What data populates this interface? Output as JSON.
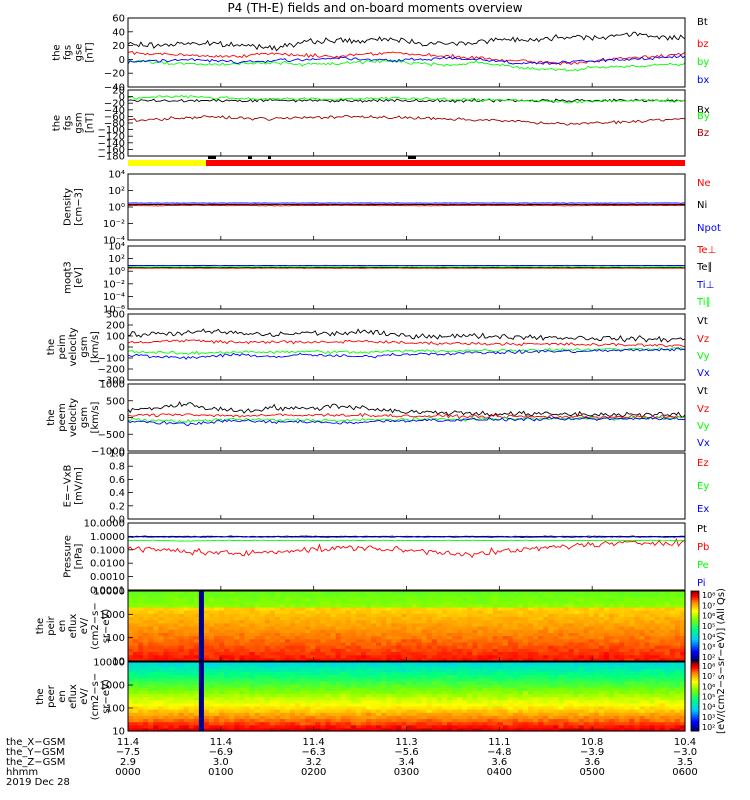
{
  "title": "P4 (TH-E) fields and on-board moments overview",
  "colors": {
    "black": "#000000",
    "red": "#ff0000",
    "green": "#00ff00",
    "blue": "#0000ff",
    "darkred": "#a00000",
    "yellow": "#ffff00"
  },
  "chart_data": [
    {
      "type": "line",
      "id": "fgs_gse",
      "ylabel_lines": [
        "the",
        "fgs",
        "gse",
        "[nT]"
      ],
      "ylim": [
        -40,
        60
      ],
      "yticks": [
        "60",
        "40",
        "20",
        "0",
        "−20",
        "−40"
      ],
      "series": [
        {
          "name": "Bt",
          "color": "black",
          "values": [
            22,
            20,
            24,
            22,
            20,
            18,
            24,
            28,
            26,
            30,
            24,
            22,
            26,
            30,
            28,
            34,
            32,
            36,
            34,
            30
          ]
        },
        {
          "name": "bz",
          "color": "red",
          "values": [
            10,
            8,
            6,
            4,
            6,
            8,
            6,
            4,
            8,
            10,
            6,
            4,
            2,
            -2,
            -4,
            -6,
            -2,
            2,
            4,
            8
          ]
        },
        {
          "name": "by",
          "color": "green",
          "values": [
            -2,
            -4,
            -6,
            -8,
            -6,
            -4,
            -8,
            -6,
            -4,
            -2,
            -6,
            -8,
            -4,
            -10,
            -14,
            -16,
            -12,
            -10,
            -8,
            -6
          ]
        },
        {
          "name": "bx",
          "color": "blue",
          "values": [
            -4,
            -2,
            0,
            -2,
            -4,
            -2,
            0,
            2,
            0,
            -2,
            0,
            2,
            0,
            -4,
            -6,
            -4,
            -2,
            0,
            2,
            4
          ]
        }
      ]
    },
    {
      "type": "line",
      "id": "fgs_gsm",
      "ylabel_lines": [
        "the",
        "fgs",
        "gsm",
        "[nT]"
      ],
      "ylim": [
        -180,
        40
      ],
      "yticks": [
        "20",
        "0",
        "−20",
        "−40",
        "−60",
        "−80",
        "−100",
        "−120",
        "−140",
        "−160",
        "−180"
      ],
      "series": [
        {
          "name": "Bx",
          "color": "black",
          "values": [
            5,
            5,
            5,
            5,
            5,
            5,
            5,
            5,
            5,
            5,
            5,
            5,
            5,
            5,
            5,
            5,
            5,
            5,
            5,
            5
          ]
        },
        {
          "name": "By",
          "color": "green",
          "values": [
            10,
            18,
            20,
            14,
            12,
            10,
            10,
            8,
            12,
            14,
            10,
            8,
            6,
            8,
            4,
            0,
            2,
            4,
            6,
            4
          ]
        },
        {
          "name": "Bz",
          "color": "darkred",
          "values": [
            -60,
            -58,
            -52,
            -50,
            -54,
            -56,
            -52,
            -50,
            -48,
            -52,
            -54,
            -58,
            -60,
            -62,
            -70,
            -74,
            -70,
            -66,
            -60,
            -56
          ]
        }
      ]
    },
    {
      "type": "line",
      "id": "density",
      "ylabel_lines": [
        "Density",
        "[cm−3]"
      ],
      "log": true,
      "ylim": [
        0.0001,
        10000.0
      ],
      "yticks": [
        "10⁴",
        "10²",
        "10⁰",
        "10⁻²",
        "10⁻⁴"
      ],
      "series": [
        {
          "name": "Ne",
          "color": "red",
          "values": [
            1.5,
            1.4,
            1.6,
            1.5,
            1.5,
            1.4,
            1.5,
            1.6,
            1.5,
            1.5,
            1.4,
            1.5,
            1.6,
            1.5,
            1.5,
            1.4,
            1.5,
            1.5,
            1.6,
            1.5
          ]
        },
        {
          "name": "Ni",
          "color": "black",
          "values": [
            2,
            2,
            2,
            2,
            2,
            2,
            2,
            2,
            2,
            2,
            2,
            2,
            2,
            2,
            2,
            2,
            2,
            2,
            2,
            2
          ]
        },
        {
          "name": "Npot",
          "color": "blue",
          "values": [
            3,
            3,
            3,
            3,
            3,
            3,
            3,
            3,
            3,
            3,
            3,
            3,
            3,
            3,
            3,
            3,
            3,
            3,
            3,
            3
          ]
        }
      ]
    },
    {
      "type": "line",
      "id": "temperature",
      "ylabel_lines": [
        "moqt3",
        "[eV]"
      ],
      "log": true,
      "ylim": [
        1e-06,
        10000.0
      ],
      "yticks": [
        "10⁴",
        "10²",
        "10⁰",
        "10⁻²",
        "10⁻⁴",
        "10⁻⁶"
      ],
      "series": [
        {
          "name": "Te⊥",
          "color": "red",
          "values": [
            3,
            3,
            3,
            3,
            3,
            3,
            3,
            3,
            3,
            3,
            3,
            3,
            3,
            3,
            3,
            3,
            3,
            3,
            3,
            3
          ]
        },
        {
          "name": "Te∥",
          "color": "black",
          "values": [
            4,
            4,
            4,
            4,
            4,
            4,
            4,
            4,
            4,
            4,
            4,
            4,
            4,
            4,
            4,
            4,
            4,
            4,
            4,
            4
          ]
        },
        {
          "name": "Ti⊥",
          "color": "blue",
          "values": [
            8,
            8,
            8,
            8,
            8,
            8,
            8,
            8,
            8,
            8,
            8,
            8,
            8,
            8,
            8,
            8,
            8,
            8,
            8,
            8
          ]
        },
        {
          "name": "Ti∥",
          "color": "green",
          "values": [
            5,
            5,
            5,
            5,
            5,
            5,
            5,
            5,
            5,
            5,
            5,
            5,
            5,
            5,
            5,
            5,
            5,
            5,
            5,
            5
          ]
        }
      ]
    },
    {
      "type": "line",
      "id": "peim_velocity",
      "ylabel_lines": [
        "the",
        "peim",
        "velocity",
        "gsm",
        "[km/s]"
      ],
      "ylim": [
        -300,
        300
      ],
      "yticks": [
        "300",
        "200",
        "100",
        "0",
        "−100",
        "−200",
        "−300"
      ],
      "series": [
        {
          "name": "Vt",
          "color": "black",
          "values": [
            110,
            120,
            130,
            140,
            120,
            110,
            130,
            120,
            140,
            110,
            100,
            100,
            100,
            95,
            90,
            85,
            80,
            75,
            70,
            70
          ]
        },
        {
          "name": "Vz",
          "color": "red",
          "values": [
            40,
            50,
            60,
            50,
            40,
            50,
            40,
            45,
            55,
            40,
            35,
            35,
            30,
            30,
            25,
            25,
            20,
            20,
            15,
            15
          ]
        },
        {
          "name": "Vy",
          "color": "green",
          "values": [
            -40,
            -50,
            -60,
            -50,
            -40,
            -50,
            -40,
            -45,
            -50,
            -40,
            -35,
            -35,
            -30,
            -30,
            -25,
            -25,
            -20,
            -20,
            -15,
            -15
          ]
        },
        {
          "name": "Vx",
          "color": "blue",
          "values": [
            -70,
            -90,
            -100,
            -80,
            -70,
            -90,
            -70,
            -80,
            -90,
            -70,
            -60,
            -60,
            -50,
            -50,
            -40,
            -40,
            -35,
            -30,
            -25,
            -20
          ]
        }
      ]
    },
    {
      "type": "line",
      "id": "peem_velocity",
      "ylabel_lines": [
        "the",
        "peem",
        "velocity",
        "gsm",
        "[km/s]"
      ],
      "ylim": [
        -1000,
        1000
      ],
      "yticks": [
        "1000",
        "500",
        "0",
        "−500",
        "−1000"
      ],
      "series": [
        {
          "name": "Vt",
          "color": "black",
          "values": [
            200,
            300,
            400,
            250,
            200,
            300,
            250,
            350,
            300,
            200,
            150,
            150,
            120,
            110,
            100,
            100,
            90,
            90,
            80,
            80
          ]
        },
        {
          "name": "Vz",
          "color": "red",
          "values": [
            50,
            80,
            100,
            60,
            50,
            70,
            60,
            80,
            70,
            50,
            40,
            40,
            30,
            30,
            25,
            25,
            20,
            20,
            15,
            15
          ]
        },
        {
          "name": "Vy",
          "color": "green",
          "values": [
            -60,
            -90,
            -120,
            -70,
            -60,
            -80,
            -70,
            -90,
            -80,
            -60,
            -50,
            -50,
            -40,
            -40,
            -30,
            -30,
            -25,
            -25,
            -20,
            -20
          ]
        },
        {
          "name": "Vx",
          "color": "blue",
          "values": [
            -100,
            -150,
            -200,
            -120,
            -100,
            -140,
            -120,
            -160,
            -140,
            -100,
            -80,
            -80,
            -60,
            -60,
            -50,
            -50,
            -40,
            -40,
            -30,
            -30
          ]
        }
      ]
    },
    {
      "type": "line",
      "id": "efield",
      "ylabel_lines": [
        "E=−VxB",
        "[mV/m]"
      ],
      "ylim": [
        0,
        1
      ],
      "yticks": [
        "1.0",
        "0.8",
        "0.6",
        "0.4",
        "0.2",
        "0.0"
      ],
      "series": [
        {
          "name": "Ez",
          "color": "red",
          "values": []
        },
        {
          "name": "Ey",
          "color": "green",
          "values": []
        },
        {
          "name": "Ex",
          "color": "blue",
          "values": []
        }
      ]
    },
    {
      "type": "line",
      "id": "pressure",
      "ylabel_lines": [
        "Pressure",
        "[nPa]"
      ],
      "log": true,
      "ylim": [
        0.0001,
        10
      ],
      "yticks": [
        "10.0000",
        "1.0000",
        "0.1000",
        "0.0100",
        "0.0010",
        "0.0001"
      ],
      "series": [
        {
          "name": "Pt",
          "color": "black",
          "values": [
            1.0,
            1.0,
            1.0,
            1.0,
            1.0,
            1.0,
            1.0,
            1.0,
            1.0,
            1.0,
            1.0,
            1.0,
            1.0,
            1.0,
            1.0,
            1.0,
            1.0,
            1.0,
            1.0,
            1.0
          ]
        },
        {
          "name": "Pb",
          "color": "red",
          "values": [
            0.12,
            0.1,
            0.08,
            0.06,
            0.05,
            0.08,
            0.1,
            0.12,
            0.15,
            0.1,
            0.08,
            0.06,
            0.05,
            0.08,
            0.12,
            0.2,
            0.25,
            0.3,
            0.35,
            0.4
          ]
        },
        {
          "name": "Pe",
          "color": "green",
          "values": [
            0.5,
            0.5,
            0.45,
            0.5,
            0.5,
            0.5,
            0.5,
            0.5,
            0.5,
            0.5,
            0.5,
            0.5,
            0.5,
            0.5,
            0.5,
            0.5,
            0.5,
            0.5,
            0.5,
            0.5
          ]
        },
        {
          "name": "Pi",
          "color": "blue",
          "values": [
            0.9,
            0.9,
            0.9,
            0.9,
            0.9,
            0.9,
            0.9,
            0.9,
            0.9,
            0.9,
            0.9,
            0.9,
            0.9,
            0.9,
            0.9,
            0.9,
            0.9,
            0.9,
            0.9,
            0.9
          ]
        }
      ]
    },
    {
      "type": "heatmap",
      "id": "peir",
      "ylabel_lines": [
        "the",
        "peir",
        "en",
        "eflux",
        "eV/",
        "(cm2−s−",
        "sr−eV)"
      ],
      "log": true,
      "ylim": [
        10,
        10000
      ],
      "yticks": [
        "10000",
        "1000",
        "100",
        "10"
      ],
      "colorbar": {
        "ticks": [
          "10⁸",
          "10⁷",
          "10⁶",
          "10⁵",
          "10⁴",
          "10³",
          "10²"
        ],
        "label": "[eV/(cm2−s−sr−eV)] (All Qs)"
      }
    },
    {
      "type": "heatmap",
      "id": "peer",
      "ylabel_lines": [
        "the",
        "peer",
        "en",
        "eflux",
        "eV/",
        "(cm2−s−",
        "sr−eV)"
      ],
      "log": true,
      "ylim": [
        10,
        10000
      ],
      "yticks": [
        "10000",
        "1000",
        "100",
        "10"
      ],
      "colorbar": {
        "ticks": [
          "10⁸",
          "10⁷",
          "10⁶",
          "10⁵",
          "10⁴",
          "10³",
          "10²"
        ],
        "label": "[eV/(cm2−s−sr−eV)] (All Qs)"
      }
    }
  ],
  "xaxis": {
    "row_labels": [
      "the_X−GSM",
      "the_Y−GSM",
      "the_Z−GSM",
      "hhmm",
      "2019 Dec 28"
    ],
    "ticks": [
      {
        "x": "11.4",
        "y": "−7.5",
        "z": "2.9",
        "t": "0000"
      },
      {
        "x": "11.4",
        "y": "−6.9",
        "z": "3.0",
        "t": "0100"
      },
      {
        "x": "11.4",
        "y": "−6.3",
        "z": "3.2",
        "t": "0200"
      },
      {
        "x": "11.3",
        "y": "−5.6",
        "z": "3.4",
        "t": "0300"
      },
      {
        "x": "11.1",
        "y": "−4.8",
        "z": "3.6",
        "t": "0400"
      },
      {
        "x": "10.8",
        "y": "−3.9",
        "z": "3.6",
        "t": "0500"
      },
      {
        "x": "10.4",
        "y": "−3.0",
        "z": "3.5",
        "t": "0600"
      }
    ]
  }
}
